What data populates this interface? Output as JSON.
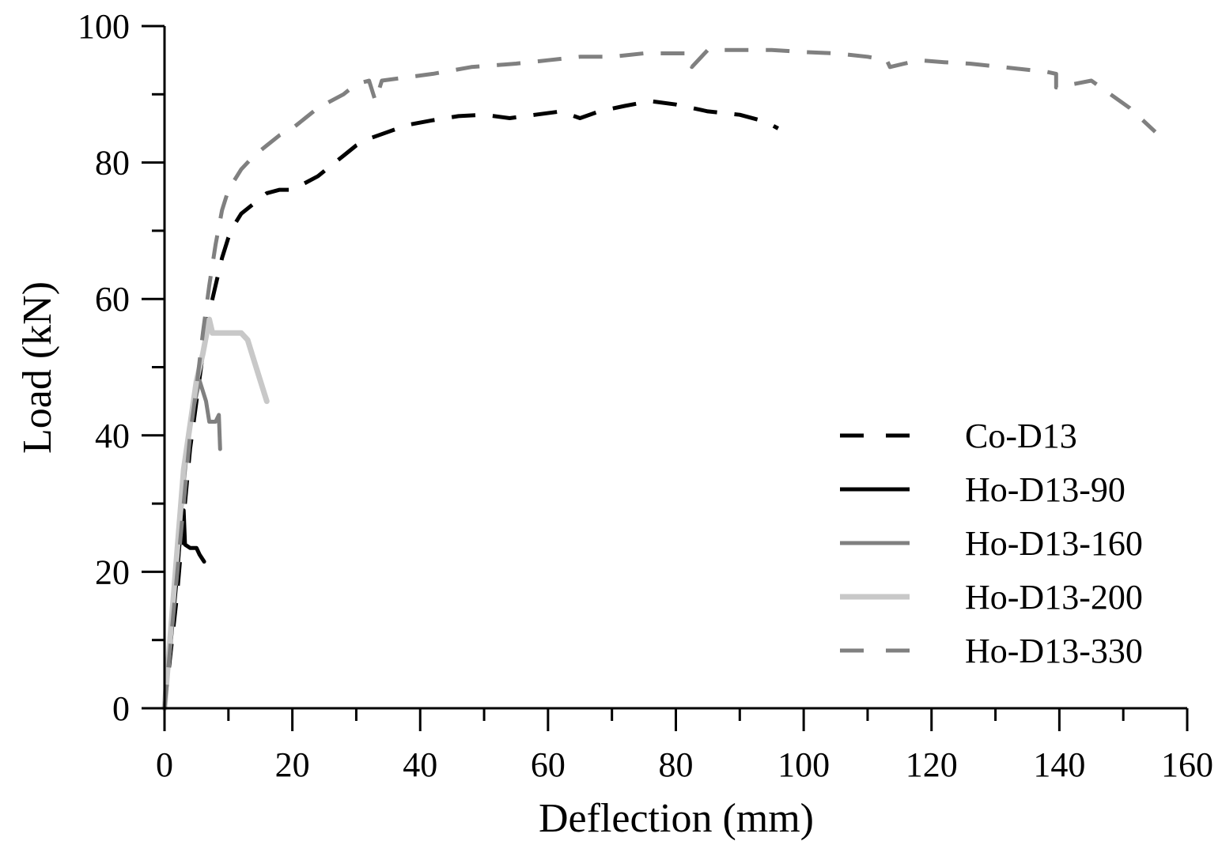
{
  "chart_data": {
    "type": "line",
    "title": "",
    "xlabel": "Deflection (mm)",
    "ylabel": "Load (kN)",
    "xlim": [
      0,
      160
    ],
    "ylim": [
      0,
      100
    ],
    "x_major_ticks": [
      0,
      20,
      40,
      60,
      80,
      100,
      120,
      140,
      160
    ],
    "x_minor_step": 10,
    "y_major_ticks": [
      0,
      20,
      40,
      60,
      80,
      100
    ],
    "y_minor_step": 10,
    "grid": false,
    "legend_position": "bottom-right",
    "series": [
      {
        "name": "Co-D13",
        "color": "#000000",
        "style": "dashed",
        "points": [
          [
            0,
            0
          ],
          [
            2,
            17
          ],
          [
            3,
            28
          ],
          [
            4,
            38
          ],
          [
            5,
            45
          ],
          [
            6,
            52
          ],
          [
            7,
            58
          ],
          [
            8,
            62
          ],
          [
            9,
            66
          ],
          [
            10,
            69
          ],
          [
            11,
            71
          ],
          [
            12,
            72.5
          ],
          [
            14,
            74
          ],
          [
            16,
            75.5
          ],
          [
            18,
            76
          ],
          [
            20,
            76
          ],
          [
            22,
            77
          ],
          [
            24,
            78
          ],
          [
            26,
            79.5
          ],
          [
            28,
            81
          ],
          [
            30,
            82.5
          ],
          [
            32,
            83.5
          ],
          [
            35,
            84.5
          ],
          [
            38,
            85.5
          ],
          [
            42,
            86.2
          ],
          [
            46,
            86.8
          ],
          [
            50,
            87
          ],
          [
            54,
            86.5
          ],
          [
            58,
            87
          ],
          [
            62,
            87.5
          ],
          [
            65,
            86.5
          ],
          [
            68,
            87.5
          ],
          [
            72,
            88.3
          ],
          [
            76,
            89
          ],
          [
            80,
            88.5
          ],
          [
            85,
            87.5
          ],
          [
            90,
            87
          ],
          [
            94,
            86
          ],
          [
            96,
            85
          ]
        ]
      },
      {
        "name": "Ho-D13-90",
        "color": "#000000",
        "style": "solid",
        "points": [
          [
            0,
            0
          ],
          [
            1,
            10
          ],
          [
            2,
            20
          ],
          [
            2.5,
            26
          ],
          [
            3,
            29
          ],
          [
            3.2,
            24
          ],
          [
            4,
            23.5
          ],
          [
            5,
            23.5
          ],
          [
            5.5,
            22.5
          ],
          [
            6.2,
            21.5
          ]
        ]
      },
      {
        "name": "Ho-D13-160",
        "color": "#808080",
        "style": "solid",
        "points": [
          [
            0,
            0
          ],
          [
            3,
            33
          ],
          [
            4,
            42
          ],
          [
            5,
            46
          ],
          [
            5.5,
            48
          ],
          [
            6.5,
            45
          ],
          [
            7,
            42
          ],
          [
            8,
            42
          ],
          [
            8.5,
            43
          ],
          [
            8.7,
            38
          ]
        ]
      },
      {
        "name": "Ho-D13-200",
        "color": "#c8c8c8",
        "style": "solid",
        "points": [
          [
            0,
            0
          ],
          [
            3,
            35
          ],
          [
            5,
            48
          ],
          [
            6,
            52
          ],
          [
            7,
            57
          ],
          [
            7.5,
            55
          ],
          [
            9,
            55
          ],
          [
            11,
            55
          ],
          [
            12,
            55
          ],
          [
            13,
            54
          ],
          [
            14,
            51
          ],
          [
            15,
            48
          ],
          [
            16,
            45
          ]
        ]
      },
      {
        "name": "Ho-D13-330",
        "color": "#808080",
        "style": "dashed",
        "points": [
          [
            0,
            0
          ],
          [
            2,
            20
          ],
          [
            4,
            40
          ],
          [
            5,
            47
          ],
          [
            6,
            55
          ],
          [
            7,
            62
          ],
          [
            8,
            68
          ],
          [
            9,
            73
          ],
          [
            10,
            76
          ],
          [
            12,
            79
          ],
          [
            14,
            81
          ],
          [
            16,
            82.5
          ],
          [
            18,
            84
          ],
          [
            20,
            85
          ],
          [
            22,
            86.5
          ],
          [
            24,
            88
          ],
          [
            26,
            89
          ],
          [
            28,
            90
          ],
          [
            30,
            91.5
          ],
          [
            32,
            92
          ],
          [
            33,
            89
          ],
          [
            34,
            92
          ],
          [
            38,
            92.5
          ],
          [
            42,
            93
          ],
          [
            48,
            94
          ],
          [
            55,
            94.5
          ],
          [
            60,
            95
          ],
          [
            65,
            95.5
          ],
          [
            70,
            95.5
          ],
          [
            75,
            96
          ],
          [
            80,
            96
          ],
          [
            82,
            96
          ],
          [
            82.5,
            94
          ],
          [
            85,
            96.5
          ],
          [
            95,
            96.5
          ],
          [
            100,
            96.2
          ],
          [
            105,
            96
          ],
          [
            110,
            95.5
          ],
          [
            113,
            95
          ],
          [
            113.5,
            94
          ],
          [
            118,
            95
          ],
          [
            122,
            94.7
          ],
          [
            126,
            94.5
          ],
          [
            133,
            93.8
          ],
          [
            138,
            93.3
          ],
          [
            139.5,
            93
          ],
          [
            139.5,
            91
          ],
          [
            145,
            92
          ],
          [
            148,
            90
          ],
          [
            151,
            88
          ],
          [
            155,
            84.5
          ]
        ]
      }
    ]
  }
}
